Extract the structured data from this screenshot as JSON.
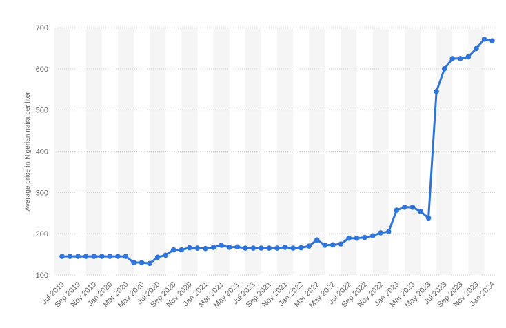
{
  "chart_data": {
    "type": "line",
    "y_label": "Average price in Nigerian naira per liter",
    "categories": [
      "Jul 2019",
      null,
      "Sep 2019",
      null,
      "Nov 2019",
      null,
      "Jan 2020",
      null,
      "Mar 2020",
      null,
      "May 2020",
      null,
      "Jul 2020",
      null,
      "Sep 2020",
      null,
      "Nov 2020",
      null,
      "Jan 2021",
      null,
      "Mar 2021",
      null,
      "May 2021",
      null,
      "Jul 2021",
      null,
      "Sep 2021",
      null,
      "Nov 2021",
      null,
      "Jan 2022",
      null,
      "Mar 2022",
      null,
      "May 2022",
      null,
      "Jul 2022",
      null,
      "Sep 2022",
      null,
      "Nov 2022",
      null,
      "Jan 2023",
      null,
      "Mar 2023",
      null,
      "May 2023",
      null,
      "Jul 2023",
      null,
      "Sep 2023",
      null,
      "Nov 2023",
      null,
      "Jan 2024"
    ],
    "series": [
      {
        "name": "Average price",
        "color": "#2f74d8",
        "values": [
          145,
          145,
          145,
          145,
          145,
          145,
          145,
          145,
          145,
          130,
          130,
          128,
          143,
          148,
          161,
          161,
          166,
          165,
          164,
          167,
          172,
          167,
          168,
          165,
          165,
          165,
          165,
          165,
          167,
          165,
          166,
          170,
          185,
          172,
          173,
          175,
          189,
          189,
          191,
          195,
          202,
          205,
          257,
          264,
          264,
          254,
          238,
          545,
          600,
          625,
          625,
          629,
          649,
          672,
          668
        ]
      }
    ],
    "ylim": [
      100,
      700
    ],
    "yticks": [
      100,
      200,
      300,
      400,
      500,
      600,
      700
    ],
    "grid": true
  }
}
